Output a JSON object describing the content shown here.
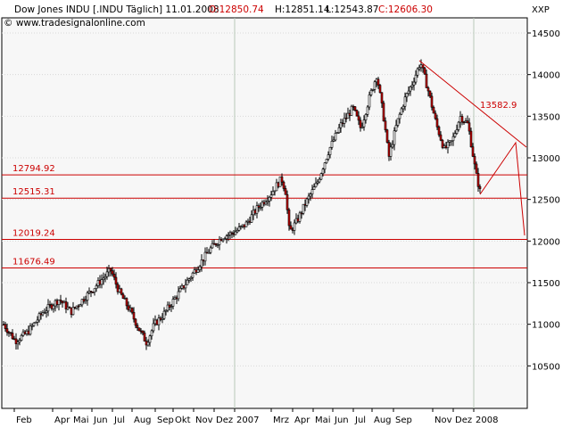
{
  "chart_data": {
    "type": "candlestick",
    "header": {
      "title": "Dow Jones INDU [.INDU  Täglich] 11.01.2008",
      "open": "O:12850.74",
      "high": "H:12851.14",
      "low": "L:12543.87",
      "close": "C:12606.30",
      "source": "© www.tradesignalonline.com"
    },
    "axis_label": "XXP",
    "y_range": [
      10000,
      14500
    ],
    "y_ticks": [
      10500,
      11000,
      11500,
      12000,
      12500,
      13000,
      13500,
      14000,
      14500
    ],
    "x_ticks": [
      "Feb",
      "Apr",
      "Mai",
      "Jun",
      "Jul",
      "Aug",
      "Sep",
      "Okt",
      "Nov",
      "Dez",
      "2007",
      "Mrz",
      "Apr",
      "Mai",
      "Jun",
      "Jul",
      "Aug",
      "Sep",
      "Nov",
      "Dez",
      "2008"
    ],
    "horizontal_levels": [
      {
        "label": "12794.92",
        "value": 12794.92
      },
      {
        "label": "12515.31",
        "value": 12515.31
      },
      {
        "label": "12019.24",
        "value": 12019.24
      },
      {
        "label": "11676.49",
        "value": 11676.49
      }
    ],
    "trendline_label": "13582.9",
    "price_path": [
      [
        0,
        11000
      ],
      [
        3,
        10800
      ],
      [
        6,
        10900
      ],
      [
        10,
        11150
      ],
      [
        14,
        11300
      ],
      [
        17,
        11150
      ],
      [
        20,
        11300
      ],
      [
        24,
        11500
      ],
      [
        27,
        11650
      ],
      [
        29,
        11400
      ],
      [
        32,
        11150
      ],
      [
        34,
        10950
      ],
      [
        36,
        10780
      ],
      [
        38,
        11000
      ],
      [
        40,
        11100
      ],
      [
        43,
        11300
      ],
      [
        46,
        11500
      ],
      [
        49,
        11700
      ],
      [
        52,
        11900
      ],
      [
        55,
        12050
      ],
      [
        58,
        12100
      ],
      [
        61,
        12200
      ],
      [
        64,
        12400
      ],
      [
        67,
        12550
      ],
      [
        70,
        12750
      ],
      [
        71,
        12600
      ],
      [
        72,
        12100
      ],
      [
        74,
        12250
      ],
      [
        76,
        12450
      ],
      [
        79,
        12700
      ],
      [
        82,
        13100
      ],
      [
        85,
        13400
      ],
      [
        88,
        13600
      ],
      [
        90,
        13350
      ],
      [
        92,
        13700
      ],
      [
        94,
        14000
      ],
      [
        96,
        13400
      ],
      [
        97,
        13000
      ],
      [
        99,
        13400
      ],
      [
        101,
        13700
      ],
      [
        103,
        13900
      ],
      [
        105,
        14150
      ],
      [
        107,
        13800
      ],
      [
        109,
        13400
      ],
      [
        111,
        13100
      ],
      [
        113,
        13200
      ],
      [
        115,
        13500
      ],
      [
        117,
        13400
      ],
      [
        118,
        13100
      ],
      [
        119,
        12800
      ],
      [
        120,
        12600
      ]
    ]
  }
}
